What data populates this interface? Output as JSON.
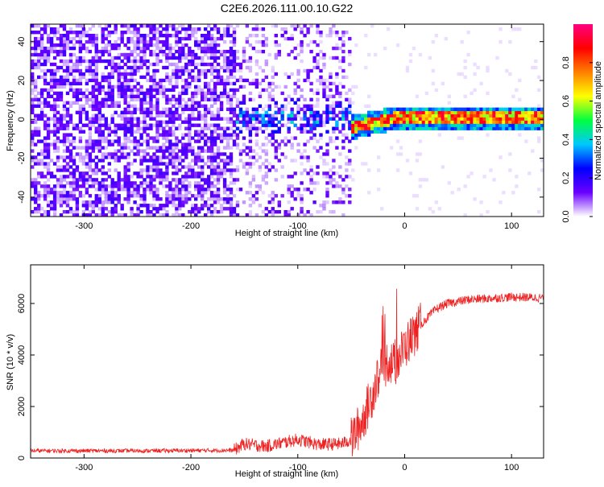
{
  "chart_data": [
    {
      "type": "heatmap",
      "title": "C2E6.2026.111.00.10.G22",
      "xlabel": "Height of straight line (km)",
      "ylabel": "Frequency (Hz)",
      "xlim": [
        -350,
        130
      ],
      "ylim": [
        -50,
        49
      ],
      "xticks": [
        -300,
        -200,
        -100,
        0,
        100
      ],
      "yticks": [
        -40,
        -20,
        0,
        20,
        40
      ],
      "colorbar": {
        "label": "Normalized spectral amplitude",
        "ticks": [
          "0.0",
          "0.2",
          "0.4",
          "0.6",
          "0.8"
        ],
        "tick_values": [
          0.0,
          0.2,
          0.4,
          0.6,
          0.8
        ],
        "range": [
          0,
          1
        ],
        "colormap": [
          "#ffffff",
          "#6a00ff",
          "#0000ff",
          "#00c8ff",
          "#00ff40",
          "#ffff00",
          "#ff8000",
          "#ff0000",
          "#ff0080"
        ]
      },
      "features": {
        "noise_region_end_km": -50,
        "signal_start_km": -160,
        "signal_center_freq_hz": 0,
        "signal_peak_amplitude": 0.9
      }
    },
    {
      "type": "line",
      "xlabel": "Height of straight line (km)",
      "ylabel": "SNR (10 * v/v)",
      "xlim": [
        -350,
        130
      ],
      "ylim": [
        0,
        7500
      ],
      "xticks": [
        -300,
        -200,
        -100,
        0,
        100
      ],
      "yticks": [
        0,
        2000,
        4000,
        6000
      ],
      "series": [
        {
          "name": "SNR",
          "color": "#ee2222",
          "anchors_x": [
            -350,
            -250,
            -160,
            -150,
            -130,
            -100,
            -80,
            -60,
            -50,
            -40,
            -30,
            -25,
            -20,
            -15,
            -10,
            0,
            10,
            20,
            30,
            40,
            60,
            80,
            100,
            130
          ],
          "anchors_y": [
            280,
            280,
            300,
            550,
            450,
            720,
            520,
            550,
            700,
            1400,
            2500,
            3200,
            3500,
            3800,
            3600,
            4300,
            4900,
            5400,
            5800,
            6000,
            6150,
            6200,
            6250,
            6220
          ]
        }
      ]
    }
  ]
}
